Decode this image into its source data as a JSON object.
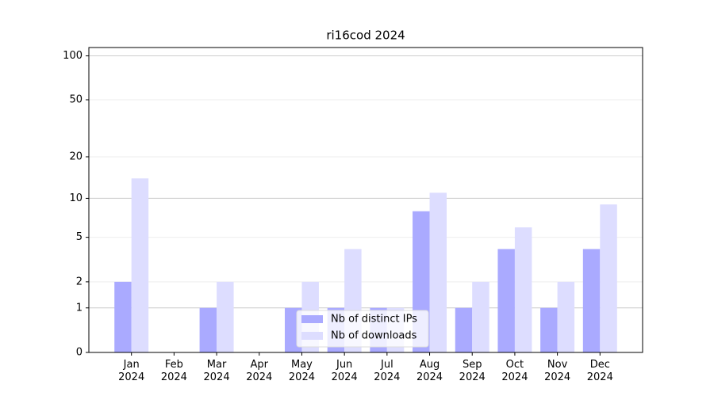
{
  "chart_data": {
    "type": "bar",
    "title": "ri16cod 2024",
    "categories": [
      "Jan\n2024",
      "Feb\n2024",
      "Mar\n2024",
      "Apr\n2024",
      "May\n2024",
      "Jun\n2024",
      "Jul\n2024",
      "Aug\n2024",
      "Sep\n2024",
      "Oct\n2024",
      "Nov\n2024",
      "Dec\n2024"
    ],
    "series": [
      {
        "name": "Nb of distinct IPs",
        "color": "#aaaaff",
        "values": [
          2,
          0,
          1,
          0,
          1,
          1,
          1,
          8,
          1,
          4,
          1,
          4
        ]
      },
      {
        "name": "Nb of downloads",
        "color": "#ddddff",
        "values": [
          14,
          0,
          2,
          0,
          2,
          4,
          1,
          11,
          2,
          6,
          2,
          9
        ]
      }
    ],
    "ylim": [
      0,
      114
    ],
    "yticks": [
      0,
      1,
      2,
      5,
      10,
      20,
      50,
      100
    ],
    "yscale": "log1p",
    "grid": true,
    "legend": "lower center"
  }
}
